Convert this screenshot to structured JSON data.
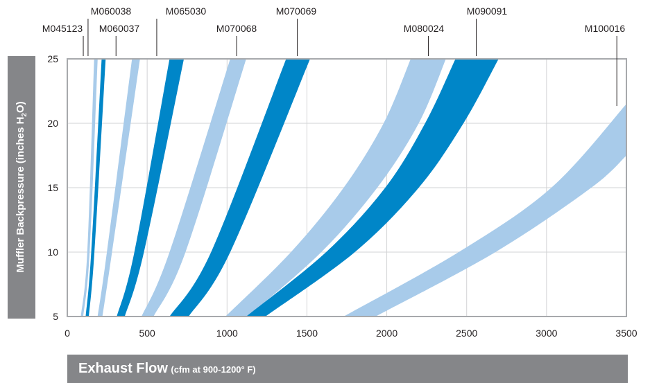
{
  "chart_data": {
    "type": "area",
    "title": "",
    "xlabel_main": "Exhaust Flow",
    "xlabel_sub": "(cfm at 900-1200° F)",
    "ylabel_main": "Muffler Backpressure (inches H",
    "ylabel_sub": "2",
    "ylabel_end": "O)",
    "xlim": [
      0,
      3500
    ],
    "ylim": [
      5,
      25
    ],
    "xticks": [
      0,
      500,
      1000,
      1500,
      2000,
      2500,
      3000,
      3500
    ],
    "yticks": [
      5,
      10,
      15,
      20,
      25
    ],
    "grid": true,
    "series": [
      {
        "name": "M045123",
        "color": "#a8cbea",
        "label_x": 100,
        "lower": [
          [
            85,
            5
          ],
          [
            125,
            10
          ],
          [
            168,
            25
          ]
        ],
        "upper": [
          [
            100,
            5
          ],
          [
            140,
            10
          ],
          [
            190,
            25
          ]
        ]
      },
      {
        "name": "M060038",
        "color": "#0086c8",
        "label_x": 130,
        "lower": [
          [
            115,
            5
          ],
          [
            150,
            10
          ],
          [
            215,
            25
          ]
        ],
        "upper": [
          [
            135,
            5
          ],
          [
            170,
            10
          ],
          [
            240,
            25
          ]
        ]
      },
      {
        "name": "M060037",
        "color": "#a8cbea",
        "label_x": 305,
        "lower": [
          [
            190,
            5
          ],
          [
            248,
            10
          ],
          [
            405,
            25
          ]
        ],
        "upper": [
          [
            220,
            5
          ],
          [
            280,
            10
          ],
          [
            455,
            25
          ]
        ]
      },
      {
        "name": "M065030",
        "color": "#0086c8",
        "label_x": 560,
        "lower": [
          [
            310,
            5
          ],
          [
            420,
            10
          ],
          [
            640,
            25
          ]
        ],
        "upper": [
          [
            360,
            5
          ],
          [
            480,
            10
          ],
          [
            730,
            25
          ]
        ]
      },
      {
        "name": "M070068",
        "color": "#a8cbea",
        "label_x": 1060,
        "lower": [
          [
            465,
            5
          ],
          [
            640,
            10
          ],
          [
            1020,
            25
          ]
        ],
        "upper": [
          [
            540,
            5
          ],
          [
            740,
            10
          ],
          [
            1120,
            25
          ]
        ]
      },
      {
        "name": "M070069",
        "color": "#0086c8",
        "label_x": 1440,
        "lower": [
          [
            640,
            5
          ],
          [
            900,
            10
          ],
          [
            1370,
            25
          ]
        ],
        "upper": [
          [
            760,
            5
          ],
          [
            1020,
            10
          ],
          [
            1520,
            25
          ]
        ]
      },
      {
        "name": "M080024",
        "color": "#a8cbea",
        "label_x": 2260,
        "lower": [
          [
            990,
            5
          ],
          [
            1400,
            10
          ],
          [
            1730,
            15
          ],
          [
            1980,
            20
          ],
          [
            2150,
            25
          ]
        ],
        "upper": [
          [
            1130,
            5
          ],
          [
            1590,
            10
          ],
          [
            1940,
            15
          ],
          [
            2200,
            20
          ],
          [
            2370,
            25
          ]
        ]
      },
      {
        "name": "M090091",
        "color": "#0086c8",
        "label_x": 2560,
        "lower": [
          [
            1120,
            5
          ],
          [
            1620,
            10
          ],
          [
            1990,
            15
          ],
          [
            2240,
            20
          ],
          [
            2430,
            25
          ]
        ],
        "upper": [
          [
            1240,
            5
          ],
          [
            1800,
            10
          ],
          [
            2200,
            15
          ],
          [
            2480,
            20
          ],
          [
            2700,
            25
          ]
        ]
      },
      {
        "name": "M100016",
        "color": "#a8cbea",
        "label_x": 3440,
        "lower": [
          [
            1730,
            5
          ],
          [
            2450,
            10
          ],
          [
            3030,
            15
          ],
          [
            3500,
            21.5
          ]
        ],
        "upper": [
          [
            1930,
            5
          ],
          [
            2680,
            10
          ],
          [
            3280,
            15
          ],
          [
            3500,
            17.5
          ]
        ]
      }
    ]
  }
}
